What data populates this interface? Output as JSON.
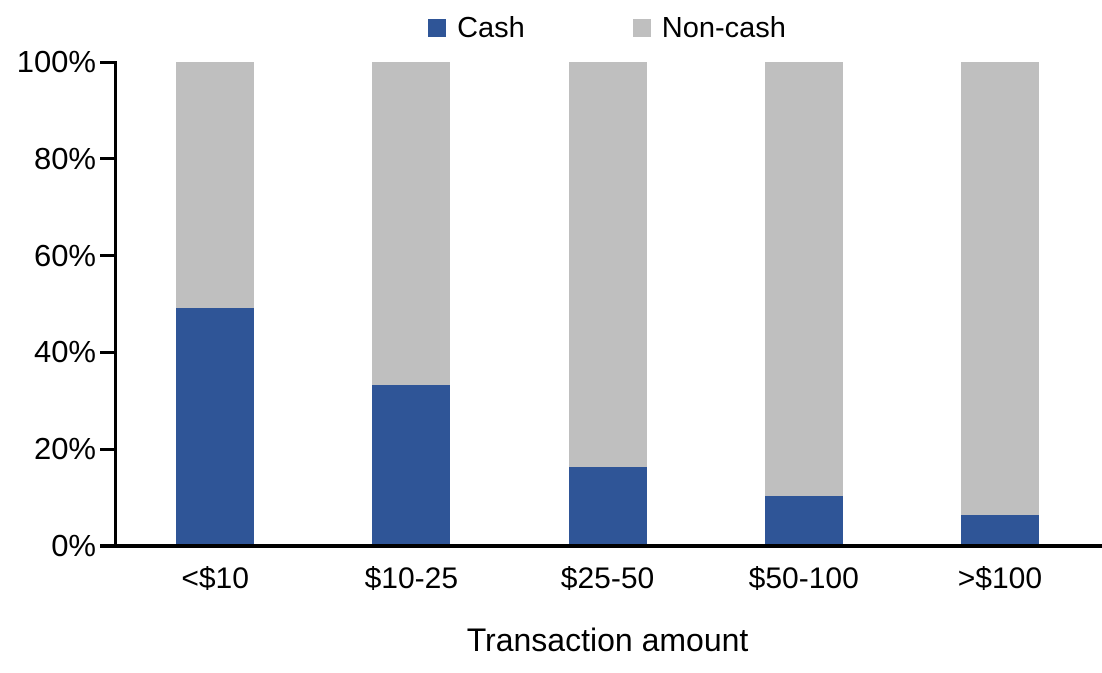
{
  "chart_data": {
    "type": "bar",
    "subtype": "stacked-100-percent",
    "title": "",
    "xlabel": "Transaction amount",
    "ylabel": "",
    "categories": [
      "<$10",
      "$10-25",
      "$25-50",
      "$50-100",
      ">$100"
    ],
    "series": [
      {
        "name": "Cash",
        "color": "#2F5597",
        "values": [
          49,
          33,
          16,
          10,
          6
        ]
      },
      {
        "name": "Non-cash",
        "color": "#BFBFBF",
        "values": [
          51,
          67,
          84,
          90,
          94
        ]
      }
    ],
    "ylim": [
      0,
      100
    ],
    "y_ticks": [
      {
        "label": "0%",
        "value": 0
      },
      {
        "label": "20%",
        "value": 20
      },
      {
        "label": "40%",
        "value": 40
      },
      {
        "label": "60%",
        "value": 60
      },
      {
        "label": "80%",
        "value": 80
      },
      {
        "label": "100%",
        "value": 100
      }
    ],
    "legend_position": "top-center",
    "grid": false,
    "axis_color": "#000000",
    "background_color": "#FFFFFF"
  }
}
